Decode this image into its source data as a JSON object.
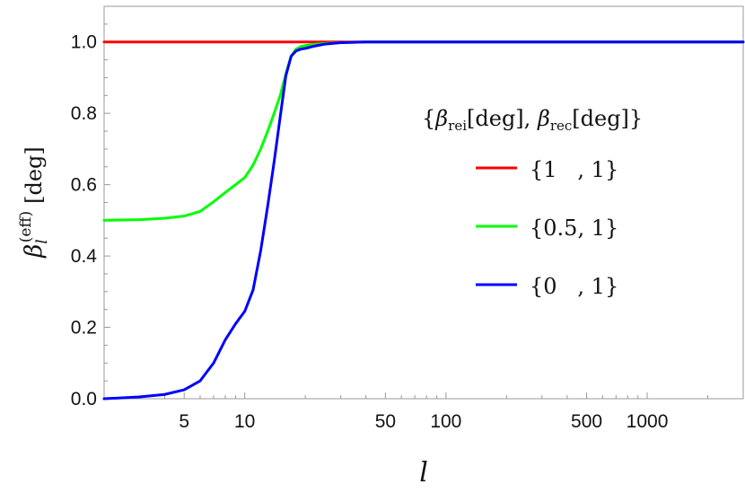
{
  "chart_data": {
    "type": "line",
    "xscale": "log",
    "xlim": [
      2,
      3000
    ],
    "ylim": [
      0,
      1.1
    ],
    "xlabel": "l",
    "ylabel": {
      "base": "β",
      "sub": "l",
      "sup": "(eff)",
      "unit": "[deg]"
    },
    "xticks": [
      {
        "value": 5,
        "label": "5"
      },
      {
        "value": 10,
        "label": "10"
      },
      {
        "value": 50,
        "label": "50"
      },
      {
        "value": 100,
        "label": "100"
      },
      {
        "value": 500,
        "label": "500"
      },
      {
        "value": 1000,
        "label": "1000"
      }
    ],
    "yticks": [
      {
        "value": 0.0,
        "label": "0.0"
      },
      {
        "value": 0.2,
        "label": "0.2"
      },
      {
        "value": 0.4,
        "label": "0.4"
      },
      {
        "value": 0.6,
        "label": "0.6"
      },
      {
        "value": 0.8,
        "label": "0.8"
      },
      {
        "value": 1.0,
        "label": "1.0"
      }
    ],
    "legend": {
      "placement": "right",
      "title": {
        "open": "{",
        "b1": "β",
        "s1": "rei",
        "u1": "[deg], ",
        "b2": "β",
        "s2": "rec",
        "u2": "[deg]",
        "close": "}"
      }
    },
    "series": [
      {
        "name": "{1   , 1}",
        "color": "#ff0000",
        "x": [
          2,
          3000
        ],
        "y": [
          1.0,
          1.0
        ]
      },
      {
        "name": "{0.5, 1}",
        "color": "#00ff00",
        "x": [
          2,
          3,
          4,
          5,
          6,
          7,
          8,
          9,
          10,
          11,
          12,
          13,
          14,
          15,
          16,
          17,
          18,
          19,
          20,
          22,
          25,
          30,
          40,
          50,
          100,
          500,
          1000,
          3000
        ],
        "y": [
          0.5,
          0.502,
          0.506,
          0.512,
          0.525,
          0.552,
          0.578,
          0.6,
          0.62,
          0.655,
          0.7,
          0.75,
          0.8,
          0.85,
          0.91,
          0.96,
          0.98,
          0.987,
          0.99,
          0.993,
          0.996,
          0.998,
          1.0,
          1.0,
          1.0,
          1.0,
          1.0,
          1.0
        ]
      },
      {
        "name": "{0   , 1}",
        "color": "#0000ff",
        "x": [
          2,
          3,
          4,
          5,
          6,
          7,
          8,
          9,
          10,
          11,
          12,
          13,
          14,
          15,
          16,
          17,
          18,
          19,
          20,
          22,
          25,
          30,
          40,
          50,
          100,
          500,
          1000,
          3000
        ],
        "y": [
          0.0,
          0.005,
          0.012,
          0.025,
          0.05,
          0.1,
          0.165,
          0.21,
          0.245,
          0.305,
          0.415,
          0.54,
          0.665,
          0.79,
          0.905,
          0.96,
          0.975,
          0.98,
          0.982,
          0.988,
          0.994,
          0.998,
          1.0,
          1.0,
          1.0,
          1.0,
          1.0,
          1.0
        ]
      }
    ]
  }
}
